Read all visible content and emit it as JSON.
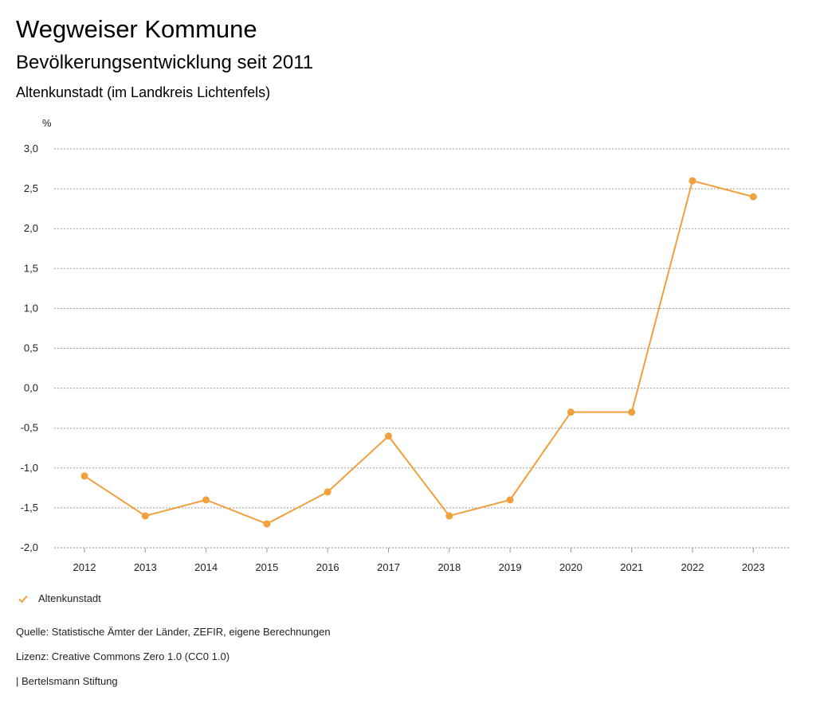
{
  "header": {
    "title": "Wegweiser Kommune",
    "subtitle": "Bevölkerungsentwicklung seit 2011",
    "region": "Altenkunstadt (im Landkreis Lichtenfels)"
  },
  "chart_data": {
    "type": "line",
    "title": "Bevölkerungsentwicklung seit 2011",
    "xlabel": "",
    "ylabel": "%",
    "categories": [
      "2012",
      "2013",
      "2014",
      "2015",
      "2016",
      "2017",
      "2018",
      "2019",
      "2020",
      "2021",
      "2022",
      "2023"
    ],
    "series": [
      {
        "name": "Altenkunstadt",
        "color": "#f0a03c",
        "values": [
          -1.1,
          -1.6,
          -1.4,
          -1.7,
          -1.3,
          -0.6,
          -1.6,
          -1.4,
          -0.3,
          -0.3,
          2.6,
          2.4
        ]
      }
    ],
    "ylim": [
      -2.0,
      3.0
    ],
    "yticks": [
      3.0,
      2.5,
      2.0,
      1.5,
      1.0,
      0.5,
      0.0,
      -0.5,
      -1.0,
      -1.5,
      -2.0
    ],
    "ytick_labels": [
      "3,0",
      "2,5",
      "2,0",
      "1,5",
      "1,0",
      "0,5",
      "0,0",
      "-0,5",
      "-1,0",
      "-1,5",
      "-2,0"
    ],
    "grid": true,
    "legend": "bottom-left"
  },
  "footer": {
    "source": "Quelle: Statistische Ämter der Länder, ZEFIR, eigene Berechnungen",
    "license": "Lizenz: Creative Commons Zero 1.0 (CC0 1.0)",
    "brand": "| Bertelsmann Stiftung"
  }
}
